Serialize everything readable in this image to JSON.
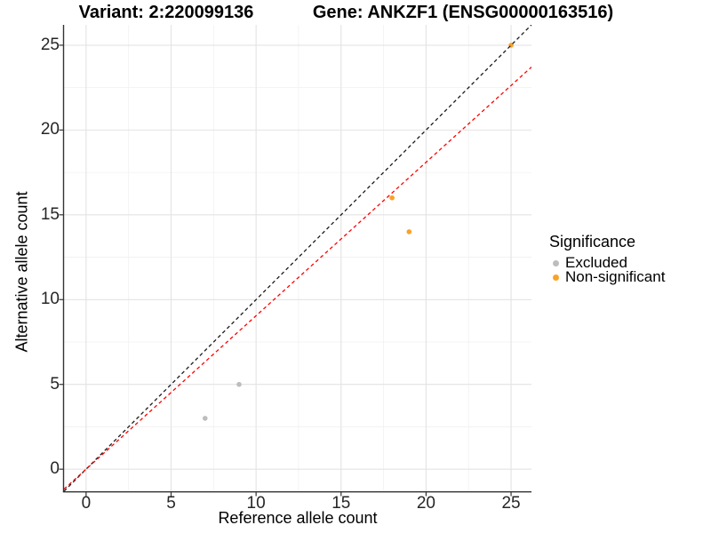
{
  "chart_data": {
    "type": "scatter",
    "titles": {
      "variant": "Variant: 2:220099136",
      "gene": "Gene: ANKZF1 (ENSG00000163516)"
    },
    "xlabel": "Reference allele count",
    "ylabel": "Alternative allele count",
    "xlim": [
      -1.3,
      26.2
    ],
    "ylim": [
      -1.3,
      26.2
    ],
    "xticks": [
      0,
      5,
      10,
      15,
      20,
      25
    ],
    "yticks": [
      0,
      5,
      10,
      15,
      20,
      25
    ],
    "minor_xticks": [
      2.5,
      7.5,
      12.5,
      17.5,
      22.5
    ],
    "minor_yticks": [
      2.5,
      7.5,
      12.5,
      17.5,
      22.5
    ],
    "grid": {
      "major_color": "#e3e3e3",
      "minor_color": "#f1f1f1",
      "axis_color": "#333333"
    },
    "series": [
      {
        "name": "Excluded",
        "color": "#bdbdbd",
        "points": [
          {
            "x": 7,
            "y": 3
          },
          {
            "x": 9,
            "y": 5
          }
        ]
      },
      {
        "name": "Non-significant",
        "color": "#f9a229",
        "points": [
          {
            "x": 18,
            "y": 16
          },
          {
            "x": 19,
            "y": 14
          },
          {
            "x": 25,
            "y": 25
          }
        ]
      }
    ],
    "ablines": [
      {
        "name": "identity-line",
        "slope": 1,
        "intercept": 0,
        "color": "#1a1a1a",
        "style": "dashed"
      },
      {
        "name": "expected-ratio-line",
        "slope": 0.905,
        "intercept": 0,
        "color": "#ff0000",
        "style": "dashed"
      }
    ],
    "legend": {
      "title": "Significance",
      "items": [
        {
          "label": "Excluded",
          "color": "#bdbdbd"
        },
        {
          "label": "Non-significant",
          "color": "#f9a229"
        }
      ]
    }
  }
}
